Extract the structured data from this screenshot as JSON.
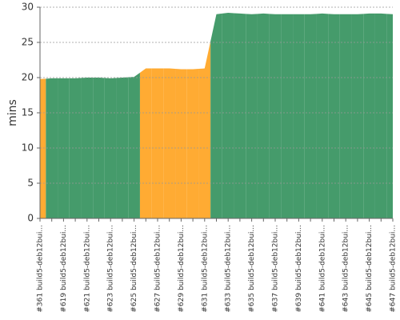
{
  "chart_data": {
    "type": "area",
    "y_label": "mins",
    "categories": [
      "#361 build5-deb12bui...",
      null,
      "#619 build5-deb12bui...",
      null,
      "#621 build5-deb12bui...",
      null,
      "#623 build5-deb12bui...",
      null,
      "#625 build5-deb12bui...",
      null,
      "#627 build5-deb12bui...",
      null,
      "#629 build5-deb12bui...",
      null,
      "#631 build5-deb12bui...",
      null,
      "#633 build5-deb12bui...",
      null,
      "#635 build5-deb12bui...",
      null,
      "#637 build5-deb12bui...",
      null,
      "#639 build5-deb12bui...",
      null,
      "#641 build5-deb12bui...",
      null,
      "#643 build5-deb12bui...",
      null,
      "#645 build5-deb12bui...",
      null,
      "#647 build5-deb12bui..."
    ],
    "values": [
      19.8,
      19.9,
      19.9,
      19.9,
      20.0,
      20.0,
      19.9,
      20.0,
      20.1,
      21.3,
      21.3,
      21.3,
      21.2,
      21.2,
      21.3,
      29.0,
      29.2,
      29.1,
      29.0,
      29.1,
      29.0,
      29.0,
      29.0,
      29.0,
      29.1,
      29.0,
      29.0,
      29.0,
      29.1,
      29.1,
      29.0
    ],
    "colors": [
      "#ffab33",
      "#459b6b",
      "#459b6b",
      "#459b6b",
      "#459b6b",
      "#459b6b",
      "#459b6b",
      "#459b6b",
      "#459b6b",
      "#ffab33",
      "#ffab33",
      "#ffab33",
      "#ffab33",
      "#ffab33",
      "#ffab33",
      "#459b6b",
      "#459b6b",
      "#459b6b",
      "#459b6b",
      "#459b6b",
      "#459b6b",
      "#459b6b",
      "#459b6b",
      "#459b6b",
      "#459b6b",
      "#459b6b",
      "#459b6b",
      "#459b6b",
      "#459b6b",
      "#459b6b",
      "#459b6b"
    ],
    "ylim": [
      0,
      30
    ],
    "yticks": [
      0,
      5,
      10,
      15,
      20,
      25,
      30
    ],
    "grid": true
  }
}
